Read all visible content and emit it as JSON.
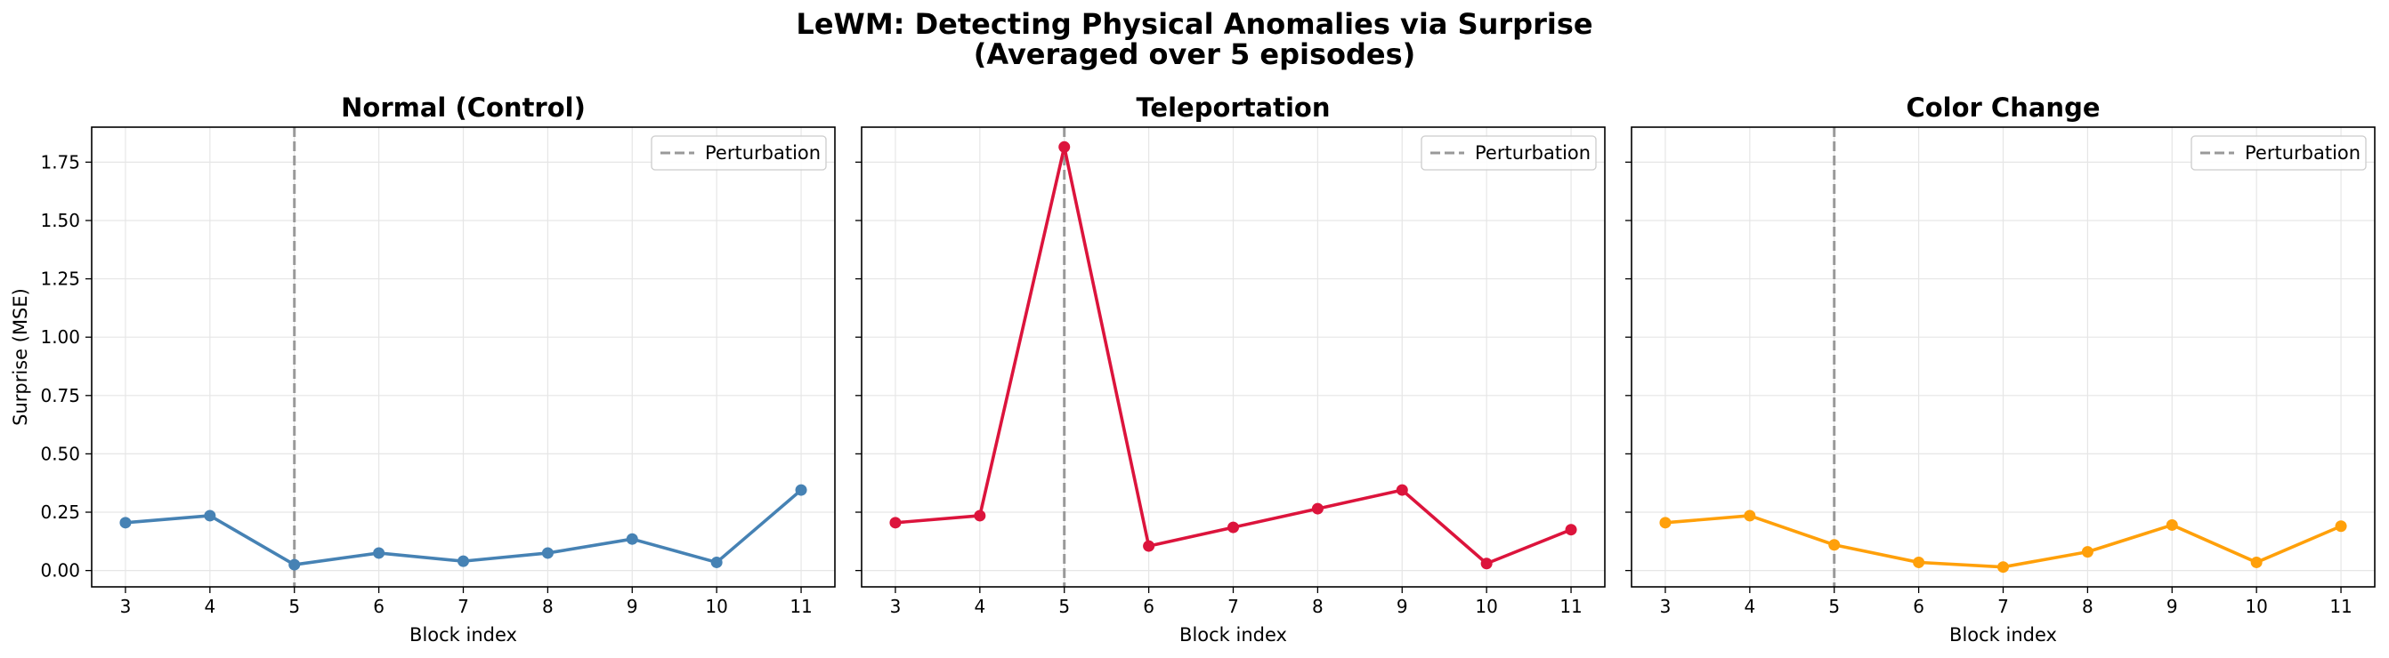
{
  "figure": {
    "title_line1": "LeWM: Detecting Physical Anomalies via Surprise",
    "title_line2": "(Averaged over 5 episodes)"
  },
  "chart_data": [
    {
      "type": "line",
      "title": "Normal (Control)",
      "xlabel": "Block index",
      "ylabel": "Surprise (MSE)",
      "x": [
        3,
        4,
        5,
        6,
        7,
        8,
        9,
        10,
        11
      ],
      "values": [
        0.205,
        0.235,
        0.025,
        0.075,
        0.04,
        0.075,
        0.135,
        0.035,
        0.345
      ],
      "color": "#4682b4",
      "marker": "circle",
      "perturbation_x": 5,
      "perturbation_color": "#999999",
      "legend": [
        "Perturbation"
      ],
      "legend_position": "top-right",
      "xlim": [
        2.6,
        11.4
      ],
      "ylim": [
        -0.07,
        1.9
      ],
      "yticks": [
        "0.00",
        "0.25",
        "0.50",
        "0.75",
        "1.00",
        "1.25",
        "1.50",
        "1.75"
      ],
      "ytick_values": [
        0,
        0.25,
        0.5,
        0.75,
        1.0,
        1.25,
        1.5,
        1.75
      ],
      "xticks": [
        "3",
        "4",
        "5",
        "6",
        "7",
        "8",
        "9",
        "10",
        "11"
      ],
      "grid": true
    },
    {
      "type": "line",
      "title": "Teleportation",
      "xlabel": "Block index",
      "ylabel": "",
      "x": [
        3,
        4,
        5,
        6,
        7,
        8,
        9,
        10,
        11
      ],
      "values": [
        0.205,
        0.235,
        1.815,
        0.105,
        0.185,
        0.265,
        0.345,
        0.03,
        0.175
      ],
      "color": "#dc143c",
      "marker": "circle",
      "perturbation_x": 5,
      "perturbation_color": "#999999",
      "legend": [
        "Perturbation"
      ],
      "legend_position": "top-right",
      "xlim": [
        2.6,
        11.4
      ],
      "ylim": [
        -0.07,
        1.9
      ],
      "yticks": [],
      "ytick_values": [
        0,
        0.25,
        0.5,
        0.75,
        1.0,
        1.25,
        1.5,
        1.75
      ],
      "xticks": [
        "3",
        "4",
        "5",
        "6",
        "7",
        "8",
        "9",
        "10",
        "11"
      ],
      "grid": true
    },
    {
      "type": "line",
      "title": "Color Change",
      "xlabel": "Block index",
      "ylabel": "",
      "x": [
        3,
        4,
        5,
        6,
        7,
        8,
        9,
        10,
        11
      ],
      "values": [
        0.205,
        0.235,
        0.11,
        0.035,
        0.015,
        0.08,
        0.195,
        0.035,
        0.19
      ],
      "color": "#ffa00a",
      "marker": "circle",
      "perturbation_x": 5,
      "perturbation_color": "#999999",
      "legend": [
        "Perturbation"
      ],
      "legend_position": "top-right",
      "xlim": [
        2.6,
        11.4
      ],
      "ylim": [
        -0.07,
        1.9
      ],
      "yticks": [],
      "ytick_values": [
        0,
        0.25,
        0.5,
        0.75,
        1.0,
        1.25,
        1.5,
        1.75
      ],
      "xticks": [
        "3",
        "4",
        "5",
        "6",
        "7",
        "8",
        "9",
        "10",
        "11"
      ],
      "grid": true
    }
  ]
}
